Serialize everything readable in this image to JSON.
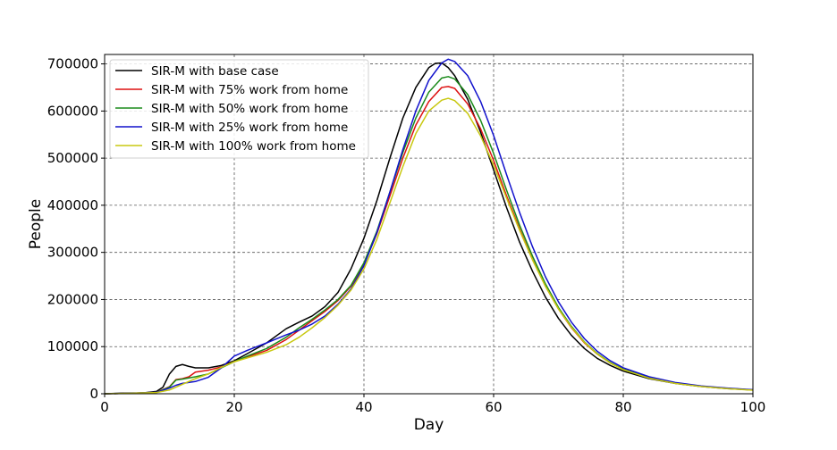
{
  "chart_data": {
    "type": "line",
    "xlabel": "Day",
    "ylabel": "People",
    "xlim": [
      0,
      100
    ],
    "ylim": [
      0,
      720000
    ],
    "xticks": [
      0,
      20,
      40,
      60,
      80,
      100
    ],
    "yticks": [
      0,
      100000,
      200000,
      300000,
      400000,
      500000,
      600000,
      700000
    ],
    "xtick_labels": [
      "0",
      "20",
      "40",
      "60",
      "80",
      "100"
    ],
    "ytick_labels": [
      "0",
      "100000",
      "200000",
      "300000",
      "400000",
      "500000",
      "600000",
      "700000"
    ],
    "grid": true,
    "legend_position": "top-left",
    "series": [
      {
        "name": "SIR-M with base case",
        "color": "#000000",
        "points": [
          [
            0,
            0
          ],
          [
            3,
            1500
          ],
          [
            6,
            2000
          ],
          [
            8,
            5000
          ],
          [
            9,
            14000
          ],
          [
            10,
            42000
          ],
          [
            11,
            58000
          ],
          [
            12,
            62000
          ],
          [
            13,
            58000
          ],
          [
            14,
            55000
          ],
          [
            16,
            55000
          ],
          [
            18,
            60000
          ],
          [
            20,
            70000
          ],
          [
            22,
            85000
          ],
          [
            25,
            108000
          ],
          [
            28,
            138000
          ],
          [
            30,
            152000
          ],
          [
            32,
            165000
          ],
          [
            34,
            185000
          ],
          [
            36,
            215000
          ],
          [
            38,
            265000
          ],
          [
            40,
            330000
          ],
          [
            42,
            410000
          ],
          [
            44,
            500000
          ],
          [
            46,
            585000
          ],
          [
            48,
            650000
          ],
          [
            50,
            692000
          ],
          [
            51,
            701000
          ],
          [
            52,
            702000
          ],
          [
            53,
            692000
          ],
          [
            54,
            675000
          ],
          [
            56,
            625000
          ],
          [
            58,
            555000
          ],
          [
            60,
            475000
          ],
          [
            62,
            395000
          ],
          [
            64,
            322000
          ],
          [
            66,
            260000
          ],
          [
            68,
            205000
          ],
          [
            70,
            160000
          ],
          [
            72,
            124000
          ],
          [
            74,
            96000
          ],
          [
            76,
            75000
          ],
          [
            78,
            60000
          ],
          [
            80,
            48000
          ],
          [
            84,
            32000
          ],
          [
            88,
            22000
          ],
          [
            92,
            15500
          ],
          [
            96,
            11000
          ],
          [
            100,
            8000
          ]
        ]
      },
      {
        "name": "SIR-M with 75% work from home",
        "color": "#dd1111",
        "points": [
          [
            0,
            0
          ],
          [
            4,
            1000
          ],
          [
            8,
            3000
          ],
          [
            10,
            15000
          ],
          [
            11,
            30000
          ],
          [
            12,
            32000
          ],
          [
            13,
            36000
          ],
          [
            14,
            46000
          ],
          [
            16,
            50000
          ],
          [
            18,
            57000
          ],
          [
            20,
            68000
          ],
          [
            22,
            78000
          ],
          [
            25,
            92000
          ],
          [
            28,
            115000
          ],
          [
            30,
            135000
          ],
          [
            32,
            155000
          ],
          [
            34,
            175000
          ],
          [
            36,
            198000
          ],
          [
            38,
            228000
          ],
          [
            40,
            275000
          ],
          [
            42,
            340000
          ],
          [
            44,
            420000
          ],
          [
            46,
            500000
          ],
          [
            48,
            570000
          ],
          [
            50,
            620000
          ],
          [
            52,
            650000
          ],
          [
            53,
            652000
          ],
          [
            54,
            648000
          ],
          [
            56,
            615000
          ],
          [
            58,
            562000
          ],
          [
            60,
            495000
          ],
          [
            62,
            420000
          ],
          [
            64,
            350000
          ],
          [
            66,
            285000
          ],
          [
            68,
            228000
          ],
          [
            70,
            180000
          ],
          [
            72,
            140000
          ],
          [
            74,
            108000
          ],
          [
            76,
            84000
          ],
          [
            78,
            65000
          ],
          [
            80,
            52000
          ],
          [
            84,
            34000
          ],
          [
            88,
            23000
          ],
          [
            92,
            16000
          ],
          [
            96,
            11500
          ],
          [
            100,
            8000
          ]
        ]
      },
      {
        "name": "SIR-M with 50% work from home",
        "color": "#1a8a1a",
        "points": [
          [
            0,
            0
          ],
          [
            4,
            1000
          ],
          [
            8,
            3000
          ],
          [
            10,
            14000
          ],
          [
            11,
            29000
          ],
          [
            12,
            31000
          ],
          [
            14,
            36000
          ],
          [
            16,
            42000
          ],
          [
            18,
            55000
          ],
          [
            20,
            68000
          ],
          [
            22,
            80000
          ],
          [
            25,
            96000
          ],
          [
            28,
            120000
          ],
          [
            30,
            140000
          ],
          [
            32,
            158000
          ],
          [
            34,
            178000
          ],
          [
            36,
            200000
          ],
          [
            38,
            230000
          ],
          [
            40,
            278000
          ],
          [
            42,
            345000
          ],
          [
            44,
            428000
          ],
          [
            46,
            512000
          ],
          [
            48,
            585000
          ],
          [
            50,
            640000
          ],
          [
            52,
            670000
          ],
          [
            53,
            673000
          ],
          [
            54,
            668000
          ],
          [
            56,
            635000
          ],
          [
            58,
            580000
          ],
          [
            60,
            510000
          ],
          [
            62,
            432000
          ],
          [
            64,
            358000
          ],
          [
            66,
            292000
          ],
          [
            68,
            233000
          ],
          [
            70,
            183000
          ],
          [
            72,
            143000
          ],
          [
            74,
            110000
          ],
          [
            76,
            85000
          ],
          [
            78,
            66000
          ],
          [
            80,
            52000
          ],
          [
            84,
            34000
          ],
          [
            88,
            23000
          ],
          [
            92,
            16000
          ],
          [
            96,
            11500
          ],
          [
            100,
            8000
          ]
        ]
      },
      {
        "name": "SIR-M with 25% work from home",
        "color": "#1111cc",
        "points": [
          [
            0,
            0
          ],
          [
            4,
            1000
          ],
          [
            8,
            3000
          ],
          [
            10,
            12000
          ],
          [
            11,
            18000
          ],
          [
            12,
            22000
          ],
          [
            14,
            26000
          ],
          [
            16,
            35000
          ],
          [
            18,
            55000
          ],
          [
            20,
            80000
          ],
          [
            22,
            92000
          ],
          [
            25,
            108000
          ],
          [
            28,
            125000
          ],
          [
            30,
            135000
          ],
          [
            32,
            148000
          ],
          [
            34,
            165000
          ],
          [
            36,
            190000
          ],
          [
            38,
            222000
          ],
          [
            40,
            272000
          ],
          [
            42,
            342000
          ],
          [
            44,
            428000
          ],
          [
            46,
            518000
          ],
          [
            48,
            600000
          ],
          [
            50,
            665000
          ],
          [
            52,
            702000
          ],
          [
            53,
            710000
          ],
          [
            54,
            705000
          ],
          [
            56,
            675000
          ],
          [
            58,
            620000
          ],
          [
            60,
            548000
          ],
          [
            62,
            465000
          ],
          [
            64,
            385000
          ],
          [
            66,
            312000
          ],
          [
            68,
            248000
          ],
          [
            70,
            195000
          ],
          [
            72,
            152000
          ],
          [
            74,
            117000
          ],
          [
            76,
            90000
          ],
          [
            78,
            70000
          ],
          [
            80,
            55000
          ],
          [
            84,
            36000
          ],
          [
            88,
            24000
          ],
          [
            92,
            16500
          ],
          [
            96,
            12000
          ],
          [
            100,
            8500
          ]
        ]
      },
      {
        "name": "SIR-M with 100% work from home",
        "color": "#c8c810",
        "points": [
          [
            0,
            0
          ],
          [
            4,
            1000
          ],
          [
            8,
            2500
          ],
          [
            10,
            8000
          ],
          [
            12,
            20000
          ],
          [
            14,
            32000
          ],
          [
            16,
            42000
          ],
          [
            18,
            56000
          ],
          [
            20,
            68000
          ],
          [
            22,
            76000
          ],
          [
            25,
            88000
          ],
          [
            28,
            104000
          ],
          [
            30,
            120000
          ],
          [
            32,
            140000
          ],
          [
            34,
            162000
          ],
          [
            36,
            188000
          ],
          [
            38,
            220000
          ],
          [
            40,
            265000
          ],
          [
            42,
            328000
          ],
          [
            44,
            405000
          ],
          [
            46,
            482000
          ],
          [
            48,
            552000
          ],
          [
            50,
            600000
          ],
          [
            52,
            623000
          ],
          [
            53,
            627000
          ],
          [
            54,
            622000
          ],
          [
            56,
            595000
          ],
          [
            58,
            547000
          ],
          [
            60,
            485000
          ],
          [
            62,
            415000
          ],
          [
            64,
            347000
          ],
          [
            66,
            284000
          ],
          [
            68,
            228000
          ],
          [
            70,
            180000
          ],
          [
            72,
            141000
          ],
          [
            74,
            109000
          ],
          [
            76,
            84000
          ],
          [
            78,
            65000
          ],
          [
            80,
            51000
          ],
          [
            84,
            33000
          ],
          [
            88,
            22000
          ],
          [
            92,
            15500
          ],
          [
            96,
            11000
          ],
          [
            100,
            7500
          ]
        ]
      }
    ]
  }
}
